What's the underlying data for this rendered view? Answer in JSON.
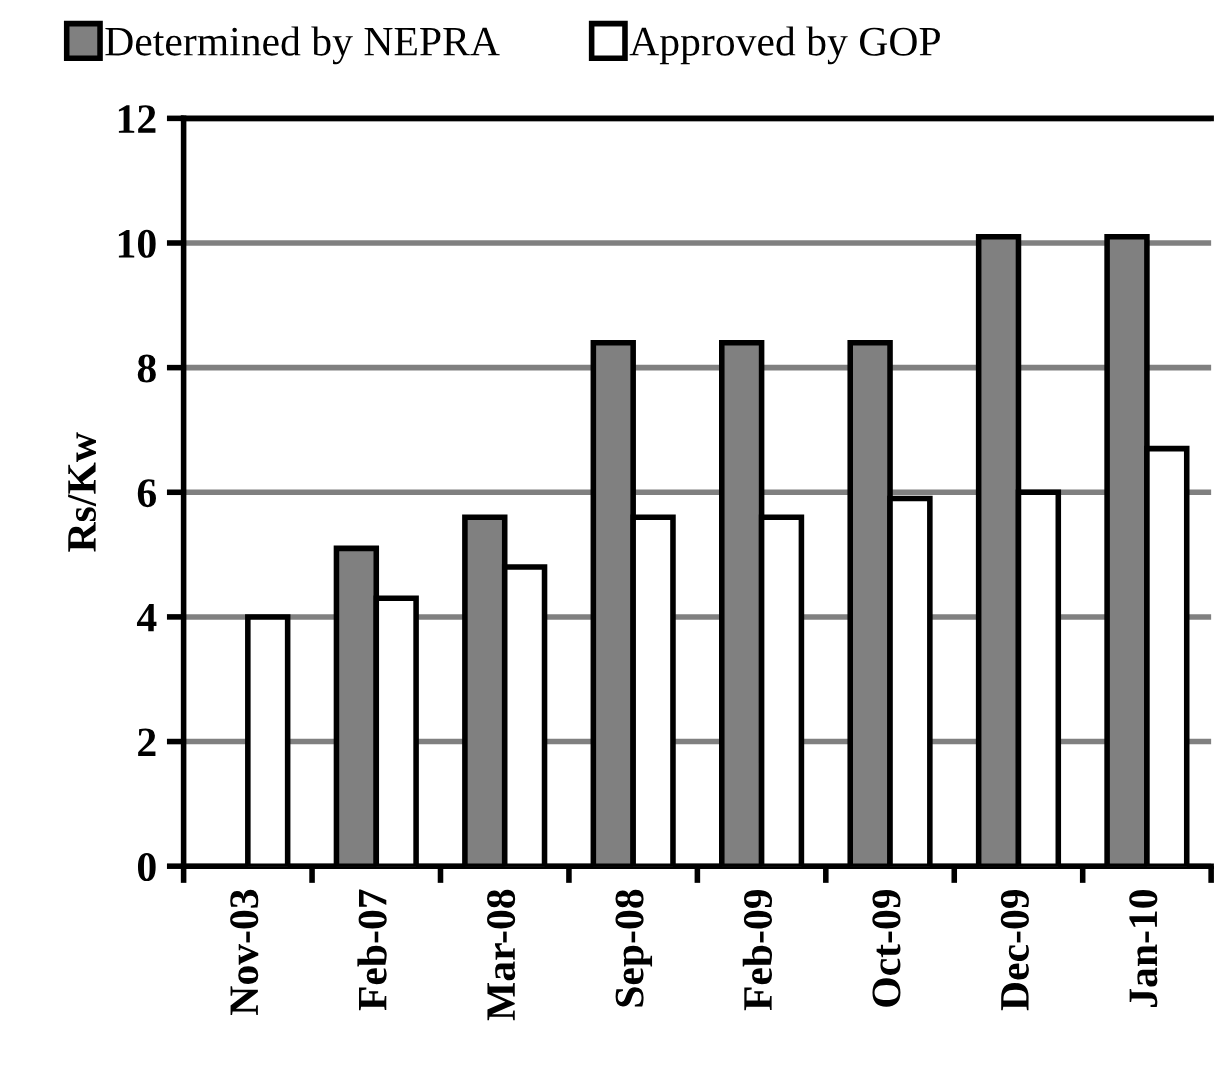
{
  "chart_data": {
    "type": "bar",
    "ylabel": "Rs/Kw",
    "categories": [
      "Nov-03",
      "Feb-07",
      "Mar-08",
      "Sep-08",
      "Feb-09",
      "Oct-09",
      "Dec-09",
      "Jan-10"
    ],
    "series": [
      {
        "name": "Determined by NEPRA",
        "color": "#808080",
        "values": [
          null,
          5.1,
          5.6,
          8.4,
          8.4,
          8.4,
          10.1,
          10.1
        ]
      },
      {
        "name": "Approved by GOP",
        "color": "#ffffff",
        "values": [
          4.0,
          4.3,
          4.8,
          5.6,
          5.6,
          5.9,
          6.0,
          6.7
        ]
      }
    ],
    "ylim": [
      0,
      12
    ],
    "yticks": [
      0,
      2,
      4,
      6,
      8,
      10,
      12
    ],
    "grid": "y",
    "legend": "top left"
  }
}
